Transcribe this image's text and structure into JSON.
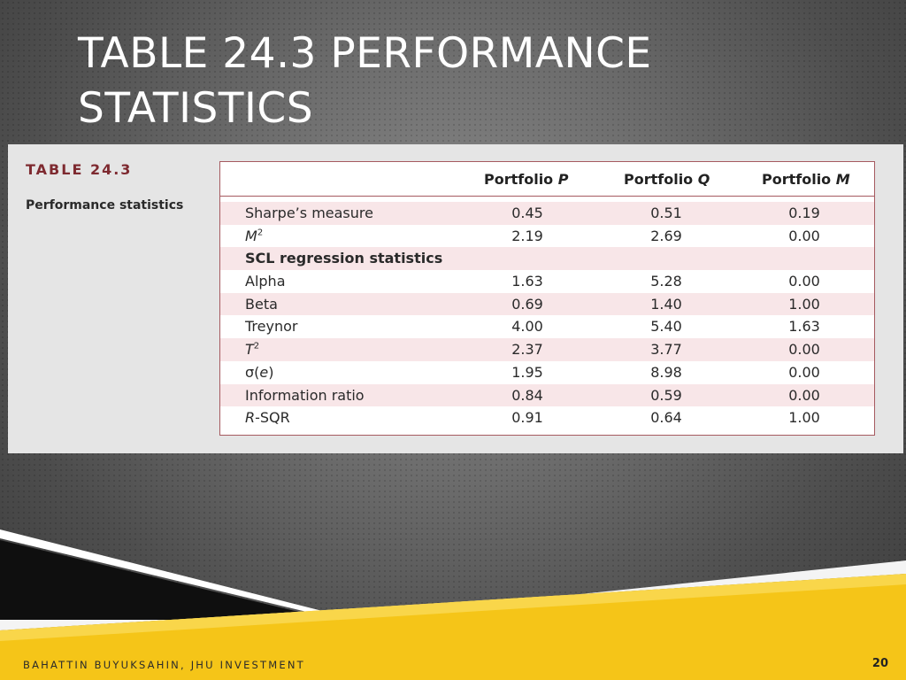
{
  "slide": {
    "title_line1": "TABLE 24.3 PERFORMANCE",
    "title_line2": "STATISTICS"
  },
  "table": {
    "label": "TABLE 24.3",
    "caption": "Performance statistics",
    "columns": [
      "Portfolio P",
      "Portfolio Q",
      "Portfolio M"
    ],
    "rows": [
      {
        "label": "Sharpe’s measure",
        "values": [
          "0.45",
          "0.51",
          "0.19"
        ]
      },
      {
        "label_base": "M",
        "label_sup": "2",
        "values": [
          "2.19",
          "2.69",
          "0.00"
        ]
      },
      {
        "label": "SCL regression statistics",
        "values": [
          "",
          "",
          ""
        ]
      },
      {
        "label": "Alpha",
        "values": [
          "1.63",
          "5.28",
          "0.00"
        ]
      },
      {
        "label": "Beta",
        "values": [
          "0.69",
          "1.40",
          "1.00"
        ]
      },
      {
        "label": "Treynor",
        "values": [
          "4.00",
          "5.40",
          "1.63"
        ]
      },
      {
        "label_base": "T",
        "label_sup": "2",
        "values": [
          "2.37",
          "3.77",
          "0.00"
        ]
      },
      {
        "label_sym": "σ(",
        "label_it": "e",
        "label_end": ")",
        "values": [
          "1.95",
          "8.98",
          "0.00"
        ]
      },
      {
        "label": "Information ratio",
        "values": [
          "0.84",
          "0.59",
          "0.00"
        ]
      },
      {
        "label_it": "R",
        "label_end": "-SQR",
        "values": [
          "0.91",
          "0.64",
          "1.00"
        ]
      }
    ]
  },
  "footer": {
    "author": "BAHATTIN BUYUKSAHIN, JHU INVESTMENT",
    "page_number": "20"
  },
  "colors": {
    "accent_yellow": "#f5c518",
    "table_border": "#a65a60",
    "row_shade": "#f8e6e8",
    "label_red": "#7e2a30"
  }
}
